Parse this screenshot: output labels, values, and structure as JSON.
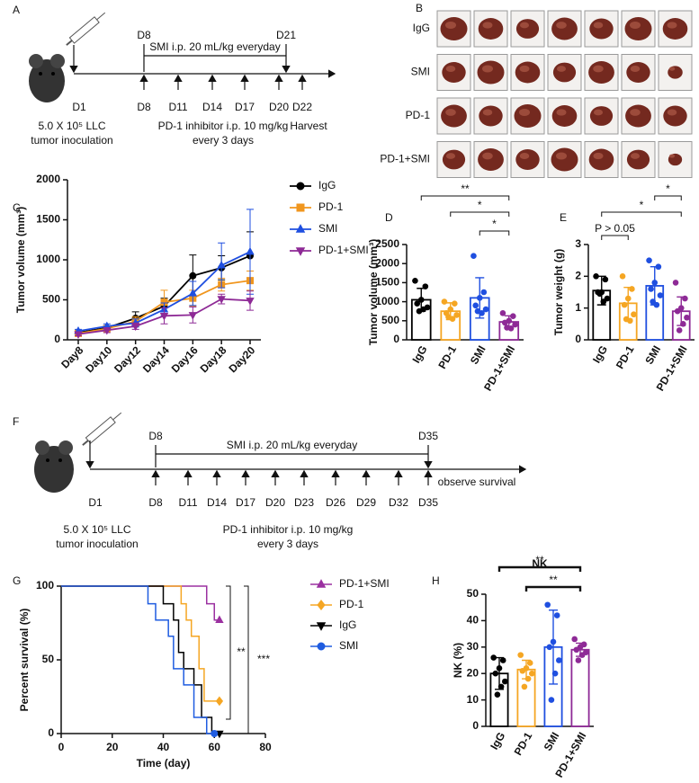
{
  "panels": [
    "A",
    "B",
    "C",
    "D",
    "E",
    "F",
    "G",
    "H"
  ],
  "timeline_a": {
    "top_labels": [
      "D8",
      "D21"
    ],
    "treatment": "SMI i.p. 20 mL/kg everyday",
    "start": "D1",
    "doses": [
      "D8",
      "D11",
      "D14",
      "D17",
      "D20"
    ],
    "end": "D22",
    "inoculation": [
      "5.0 X 10⁵ LLC",
      "tumor inoculation"
    ],
    "dosing": [
      "PD-1 inhibitor i.p. 10 mg/kg",
      "every 3 days"
    ],
    "end_note": "Harvest"
  },
  "panel_b": {
    "rows": [
      "IgG",
      "SMI",
      "PD-1",
      "PD-1+SMI"
    ]
  },
  "timeline_f": {
    "top_labels": [
      "D8",
      "D35"
    ],
    "treatment": "SMI i.p. 20 mL/kg everyday",
    "start": "D1",
    "doses": [
      "D8",
      "D11",
      "D14",
      "D17",
      "D20",
      "D23",
      "D26",
      "D29",
      "D32",
      "D35"
    ],
    "inoculation": [
      "5.0 X 10⁵ LLC",
      "tumor inoculation"
    ],
    "dosing": [
      "PD-1 inhibitor i.p. 10 mg/kg",
      "every 3 days"
    ],
    "end_note": "observe survival"
  },
  "chart_data": [
    {
      "type": "line",
      "y_label": "Tumor volume (mm³)",
      "categories": [
        "Day8",
        "Day10",
        "Day12",
        "Day14",
        "Day16",
        "Day18",
        "Day20"
      ],
      "ylim": [
        0,
        2000
      ],
      "yticks": [
        0,
        500,
        1000,
        1500,
        2000
      ],
      "series": [
        {
          "name": "IgG",
          "color": "#000000",
          "marker": "circle",
          "values": [
            90,
            150,
            270,
            420,
            800,
            900,
            1050
          ],
          "errors": [
            20,
            30,
            80,
            100,
            260,
            150,
            300
          ]
        },
        {
          "name": "PD-1",
          "color": "#f0961e",
          "marker": "square",
          "values": [
            80,
            140,
            230,
            470,
            520,
            690,
            740
          ],
          "errors": [
            20,
            30,
            60,
            150,
            100,
            80,
            120
          ]
        },
        {
          "name": "SMI",
          "color": "#1f4fe0",
          "marker": "triangle",
          "values": [
            110,
            170,
            210,
            380,
            580,
            930,
            1100
          ],
          "errors": [
            20,
            30,
            50,
            80,
            150,
            280,
            530
          ]
        },
        {
          "name": "PD-1+SMI",
          "color": "#8e2a96",
          "marker": "triangle-down",
          "values": [
            70,
            120,
            170,
            300,
            310,
            510,
            490
          ],
          "errors": [
            20,
            30,
            40,
            100,
            100,
            60,
            120
          ]
        }
      ]
    },
    {
      "type": "bar",
      "y_label": "Tumor volume (mm³)",
      "categories": [
        "IgG",
        "PD-1",
        "SMI",
        "PD-1+SMI"
      ],
      "colors": [
        "#000000",
        "#f5a623",
        "#1f4fe0",
        "#8e2a96"
      ],
      "values": [
        1050,
        750,
        1100,
        470
      ],
      "errors": [
        300,
        220,
        530,
        160
      ],
      "points": [
        [
          1550,
          1400,
          1050,
          950,
          850,
          800,
          750
        ],
        [
          1000,
          950,
          800,
          700,
          650,
          550,
          600
        ],
        [
          2200,
          1250,
          1100,
          900,
          800,
          700,
          750
        ],
        [
          700,
          620,
          500,
          450,
          400,
          300,
          320
        ]
      ],
      "ylim": [
        0,
        2500
      ],
      "yticks": [
        0,
        500,
        1000,
        1500,
        2000,
        2500
      ],
      "significance": [
        "**",
        "*",
        "*"
      ]
    },
    {
      "type": "bar",
      "y_label": "Tumor weight (g)",
      "categories": [
        "IgG",
        "PD-1",
        "SMI",
        "PD-1+SMI"
      ],
      "colors": [
        "#000000",
        "#f5a623",
        "#1f4fe0",
        "#8e2a96"
      ],
      "values": [
        1.55,
        1.15,
        1.7,
        0.9
      ],
      "errors": [
        0.45,
        0.5,
        0.6,
        0.45
      ],
      "points": [
        [
          2.0,
          1.9,
          1.5,
          1.5,
          1.3,
          1.2,
          1.45
        ],
        [
          2.0,
          1.6,
          1.3,
          1.1,
          0.8,
          0.6,
          0.65
        ],
        [
          2.5,
          2.3,
          1.8,
          1.6,
          1.4,
          1.1,
          1.2
        ],
        [
          1.8,
          1.3,
          1.0,
          0.9,
          0.7,
          0.5,
          0.3
        ]
      ],
      "ylim": [
        0,
        3
      ],
      "yticks": [
        0,
        1,
        2,
        3
      ],
      "significance": [
        "P > 0.05",
        "*",
        "*"
      ]
    },
    {
      "type": "step",
      "x_label": "Time (day)",
      "y_label": "Percent survival (%)",
      "xlim": [
        0,
        80
      ],
      "xticks": [
        0,
        20,
        40,
        60,
        80
      ],
      "ylim": [
        0,
        100
      ],
      "yticks": [
        0,
        50,
        100
      ],
      "series": [
        {
          "name": "PD-1+SMI",
          "color": "#9b30a0",
          "marker": "triangle",
          "x": [
            0,
            57,
            57,
            60,
            60,
            62
          ],
          "values": [
            100,
            100,
            88,
            88,
            77,
            77
          ]
        },
        {
          "name": "PD-1",
          "color": "#f5a623",
          "marker": "diamond",
          "x": [
            0,
            47,
            47,
            49,
            49,
            51,
            51,
            54,
            54,
            56,
            56,
            62
          ],
          "values": [
            100,
            100,
            88,
            88,
            77,
            77,
            66,
            66,
            44,
            44,
            22,
            22
          ]
        },
        {
          "name": "IgG",
          "color": "#000000",
          "marker": "triangle-down",
          "x": [
            0,
            40,
            40,
            44,
            44,
            46,
            46,
            48,
            48,
            52,
            52,
            55,
            55,
            59,
            59,
            62
          ],
          "values": [
            100,
            100,
            88,
            88,
            77,
            77,
            55,
            55,
            44,
            44,
            33,
            33,
            11,
            11,
            0,
            0
          ]
        },
        {
          "name": "SMI",
          "color": "#1f5ce0",
          "marker": "circle",
          "x": [
            0,
            34,
            34,
            37,
            37,
            42,
            42,
            44,
            44,
            48,
            48,
            52,
            52,
            57,
            57,
            60
          ],
          "values": [
            100,
            100,
            88,
            88,
            77,
            77,
            66,
            66,
            44,
            44,
            33,
            33,
            11,
            11,
            0,
            0
          ]
        }
      ],
      "significance": [
        "**",
        "***"
      ]
    },
    {
      "type": "bar",
      "title": "NK",
      "y_label": "NK (%)",
      "categories": [
        "IgG",
        "PD-1",
        "SMI",
        "PD-1+SMI"
      ],
      "colors": [
        "#000000",
        "#f5a623",
        "#1f4fe0",
        "#8e2a96"
      ],
      "values": [
        20,
        21.5,
        30,
        29
      ],
      "errors": [
        6,
        3.5,
        14,
        2.5
      ],
      "points": [
        [
          26,
          25,
          22,
          20,
          17,
          15,
          12
        ],
        [
          27,
          24,
          22,
          21,
          20,
          18,
          15
        ],
        [
          46,
          42,
          32,
          30,
          25,
          20,
          10
        ],
        [
          33,
          31,
          30,
          29,
          28,
          27,
          25
        ]
      ],
      "ylim": [
        0,
        50
      ],
      "yticks": [
        0,
        10,
        20,
        30,
        40,
        50
      ],
      "significance": [
        "**",
        "**"
      ]
    }
  ]
}
